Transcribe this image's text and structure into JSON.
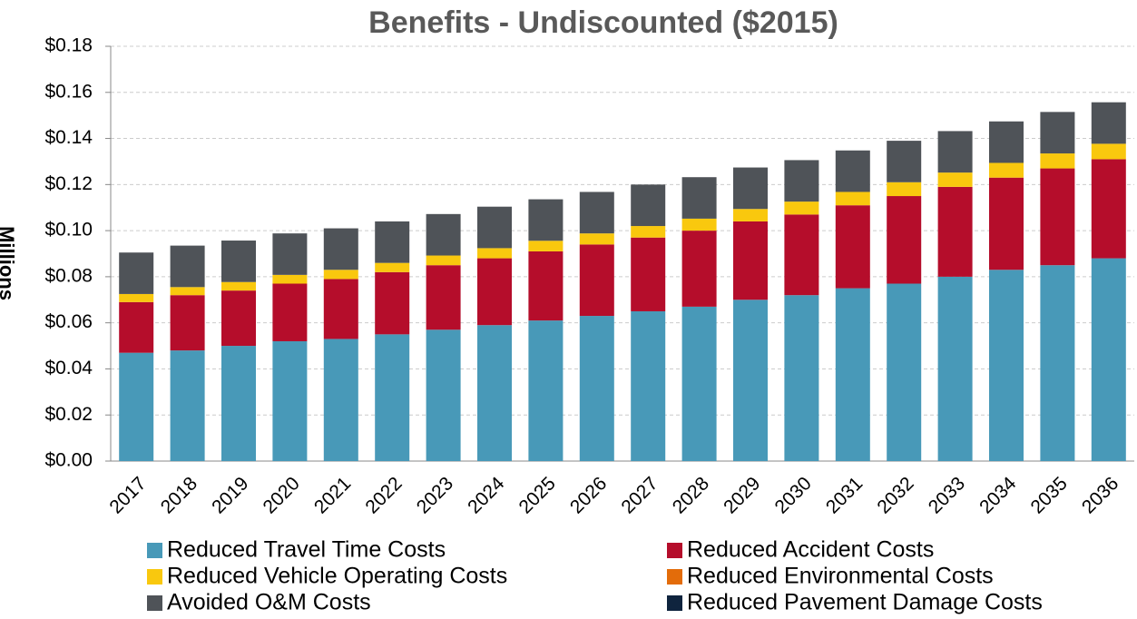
{
  "chart_data": {
    "type": "stacked_bar",
    "title": "Benefits - Undiscounted ($2015)",
    "y_label": "Millions",
    "categories": [
      "2017",
      "2018",
      "2019",
      "2020",
      "2021",
      "2022",
      "2023",
      "2024",
      "2025",
      "2026",
      "2027",
      "2028",
      "2029",
      "2030",
      "2031",
      "2032",
      "2033",
      "2034",
      "2035",
      "2036"
    ],
    "series": [
      {
        "name": "Reduced Travel Time Costs",
        "color": "#4899b8",
        "values": [
          0.047,
          0.048,
          0.05,
          0.052,
          0.053,
          0.055,
          0.057,
          0.059,
          0.061,
          0.063,
          0.065,
          0.067,
          0.07,
          0.072,
          0.075,
          0.077,
          0.08,
          0.083,
          0.085,
          0.088
        ]
      },
      {
        "name": "Reduced Accident Costs",
        "color": "#b50d2b",
        "values": [
          0.022,
          0.024,
          0.024,
          0.025,
          0.026,
          0.027,
          0.028,
          0.029,
          0.03,
          0.031,
          0.032,
          0.033,
          0.034,
          0.035,
          0.036,
          0.038,
          0.039,
          0.04,
          0.042,
          0.043
        ]
      },
      {
        "name": "Reduced Vehicle Operating Costs",
        "color": "#f9c80e",
        "values": [
          0.0035,
          0.0035,
          0.0037,
          0.0038,
          0.004,
          0.004,
          0.0042,
          0.0044,
          0.0046,
          0.0048,
          0.005,
          0.0052,
          0.0054,
          0.0056,
          0.0058,
          0.006,
          0.0062,
          0.0064,
          0.0065,
          0.0067
        ]
      },
      {
        "name": "Reduced Environmental Costs",
        "color": "#e36c0a",
        "values": [
          0,
          0,
          0,
          0,
          0,
          0,
          0,
          0,
          0,
          0,
          0,
          0,
          0,
          0,
          0,
          0,
          0,
          0,
          0,
          0
        ]
      },
      {
        "name": "Avoided O&M Costs",
        "color": "#4f5358",
        "values": [
          0.018,
          0.018,
          0.018,
          0.018,
          0.018,
          0.018,
          0.018,
          0.018,
          0.018,
          0.018,
          0.018,
          0.018,
          0.018,
          0.018,
          0.018,
          0.018,
          0.018,
          0.018,
          0.018,
          0.018
        ]
      },
      {
        "name": "Reduced Pavement Damage Costs",
        "color": "#0f243e",
        "values": [
          0,
          0,
          0,
          0,
          0,
          0,
          0,
          0,
          0,
          0,
          0,
          0,
          0,
          0,
          0,
          0,
          0,
          0,
          0,
          0
        ]
      }
    ],
    "ylim": [
      0,
      0.18
    ],
    "yticks": [
      {
        "value": 0,
        "label": "$0.00"
      },
      {
        "value": 0.02,
        "label": "$0.02"
      },
      {
        "value": 0.04,
        "label": "$0.04"
      },
      {
        "value": 0.06,
        "label": "$0.06"
      },
      {
        "value": 0.08,
        "label": "$0.08"
      },
      {
        "value": 0.1,
        "label": "$0.10"
      },
      {
        "value": 0.12,
        "label": "$0.12"
      },
      {
        "value": 0.14,
        "label": "$0.14"
      },
      {
        "value": 0.16,
        "label": "$0.16"
      },
      {
        "value": 0.18,
        "label": "$0.18"
      }
    ],
    "grid": true
  }
}
